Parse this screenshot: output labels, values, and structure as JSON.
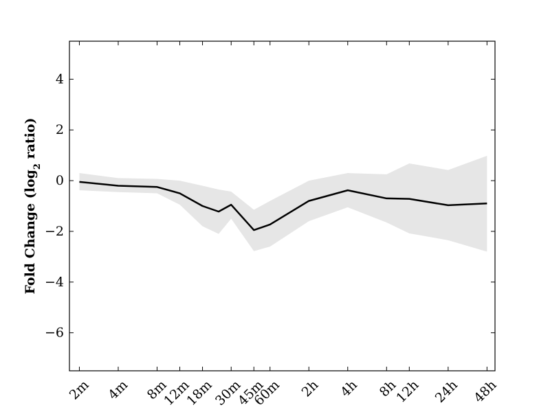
{
  "chart_data": {
    "type": "line",
    "title": "",
    "xlabel": "",
    "ylabel": "Fold Change (log",
    "ylabel_subscript": "2",
    "ylabel_suffix": " ratio)",
    "x_tick_labels": [
      "2m",
      "4m",
      "8m",
      "12m",
      "18m",
      "30m",
      "45m",
      "60m",
      "2h",
      "4h",
      "8h",
      "12h",
      "24h",
      "48h"
    ],
    "x_log_minutes": [
      0.301,
      0.602,
      0.903,
      1.079,
      1.255,
      1.477,
      1.653,
      1.778,
      2.079,
      2.38,
      2.681,
      2.857,
      3.158,
      3.459
    ],
    "ylim": [
      -7.5,
      5.5
    ],
    "y_ticks": [
      4,
      2,
      0,
      -2,
      -4,
      -6
    ],
    "y_tick_labels": [
      "4",
      "2",
      "0",
      "−2",
      "−4",
      "−6"
    ],
    "series": [
      {
        "x": [
          0.301,
          0.602,
          0.903,
          1.079,
          1.255,
          1.38,
          1.477,
          1.653,
          1.778,
          2.079,
          2.38,
          2.681,
          2.857,
          3.158,
          3.459
        ],
        "values": [
          -0.05,
          -0.2,
          -0.25,
          -0.5,
          -1.0,
          -1.22,
          -0.95,
          -1.95,
          -1.73,
          -0.8,
          -0.38,
          -0.7,
          -0.72,
          -0.97,
          -0.9
        ],
        "upper": [
          0.3,
          0.1,
          0.07,
          0.0,
          -0.2,
          -0.35,
          -0.43,
          -1.15,
          -0.8,
          0.0,
          0.3,
          0.25,
          0.68,
          0.42,
          0.98
        ],
        "lower": [
          -0.38,
          -0.45,
          -0.5,
          -0.95,
          -1.8,
          -2.1,
          -1.5,
          -2.78,
          -2.6,
          -1.6,
          -1.05,
          -1.65,
          -2.08,
          -2.35,
          -2.8
        ],
        "color": "#000000",
        "band_color": "#e6e6e6"
      }
    ],
    "grid": false
  }
}
